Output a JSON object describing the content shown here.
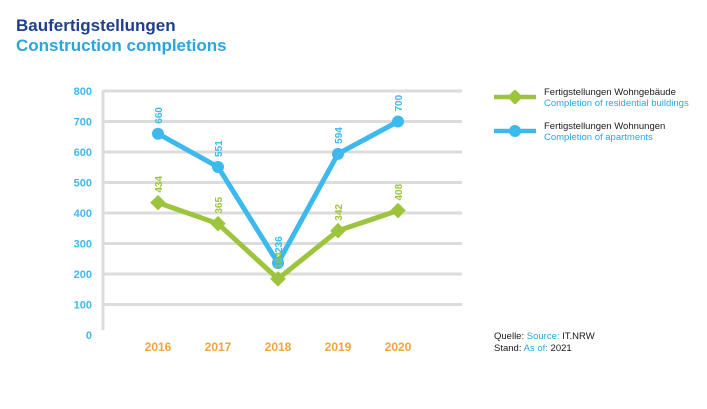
{
  "title_de": "Baufertigstellungen",
  "title_en": "Construction completions",
  "colors": {
    "series_residential": "#9dc43d",
    "series_apartments": "#3db9ee",
    "axis_labels": "#3db9ee",
    "x_labels": "#f2a53a",
    "grid": "#dcdcdc",
    "title_de": "#1f3f8c",
    "title_en": "#2aa6de"
  },
  "legend": [
    {
      "label_de": "Fertigstellungen Wohngebäude",
      "label_en": "Completion of residential buildings"
    },
    {
      "label_de": "Fertigstellungen Wohnungen",
      "label_en": "Completion of apartments"
    }
  ],
  "source": {
    "quelle_de": "Quelle:",
    "quelle_en": "Source:",
    "quelle_value": "IT.NRW",
    "stand_de": "Stand:",
    "stand_en": "As of:",
    "stand_value": "2021"
  },
  "chart_data": {
    "type": "line",
    "x": [
      "2016",
      "2017",
      "2018",
      "2019",
      "2020"
    ],
    "ylim": [
      0,
      800
    ],
    "yticks": [
      0,
      100,
      200,
      300,
      400,
      500,
      600,
      700,
      800
    ],
    "grid": true,
    "legend_position": "right",
    "series": [
      {
        "name": "Fertigstellungen Wohngebäude / Completion of residential buildings",
        "values": [
          434,
          365,
          184,
          342,
          408
        ]
      },
      {
        "name": "Fertigstellungen Wohnungen / Completion of apartments",
        "values": [
          660,
          551,
          236,
          594,
          700
        ]
      }
    ]
  }
}
